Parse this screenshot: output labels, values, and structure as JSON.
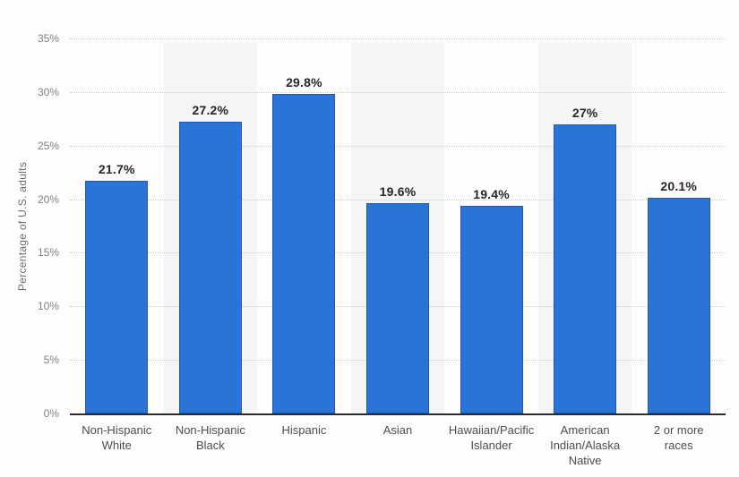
{
  "chart_data": {
    "type": "bar",
    "title": "",
    "ylabel": "Percentage of U.S. adults",
    "xlabel": "",
    "categories": [
      "Non-Hispanic\nWhite",
      "Non-Hispanic\nBlack",
      "Hispanic",
      "Asian",
      "Hawaiian/Pacific\nIslander",
      "American\nIndian/Alaska\nNative",
      "2 or more\nraces"
    ],
    "values": [
      21.7,
      27.2,
      29.8,
      19.6,
      19.4,
      27,
      20.1
    ],
    "value_labels": [
      "21.7%",
      "27.2%",
      "29.8%",
      "19.6%",
      "19.4%",
      "27%",
      "20.1%"
    ],
    "ylim": [
      0,
      35
    ],
    "ytick_step": 5,
    "ytick_suffix": "%",
    "grid": "horizontal-dotted",
    "legend": "none",
    "plot_bands": {
      "indices": [
        1,
        3,
        5
      ],
      "color": "#f5f5f5"
    },
    "colors": {
      "bar": "#2a74d8",
      "bar_border": "rgba(10,45,95,0.35)",
      "gridline": "#cccccc",
      "axis_line": "#2b2b2b",
      "tick_label": "#808080",
      "category_label": "#4d4d4d",
      "value_label": "#262626",
      "background": "#fffefd"
    }
  }
}
